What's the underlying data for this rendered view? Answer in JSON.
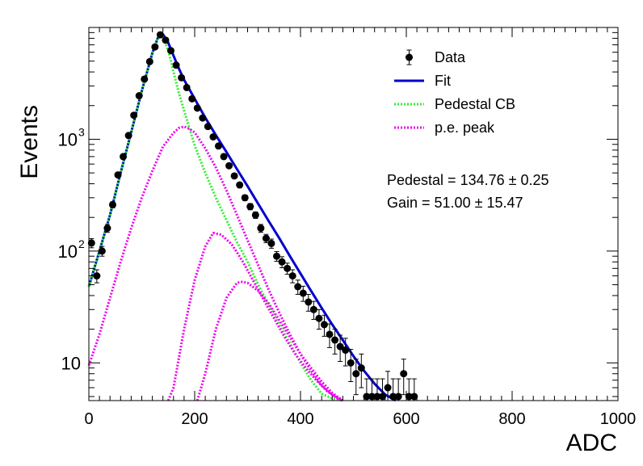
{
  "chart_data": {
    "type": "scatter",
    "xlabel": "ADC",
    "ylabel": "Events",
    "xlim": [
      0,
      1000
    ],
    "ylim": [
      4.6,
      10000
    ],
    "yscale": "log",
    "x_ticks": [
      "0",
      "200",
      "400",
      "600",
      "800",
      "1000"
    ],
    "y_ticks": [
      {
        "value": 10,
        "label": "10",
        "exp": ""
      },
      {
        "value": 100,
        "label": "10",
        "exp": "2"
      },
      {
        "value": 1000,
        "label": "10",
        "exp": "3"
      }
    ],
    "legend": {
      "position": "top-right",
      "items": [
        {
          "label": "Data",
          "kind": "marker",
          "color": "#000000"
        },
        {
          "label": "Fit",
          "kind": "solid",
          "color": "#0000cc"
        },
        {
          "label": "Pedestal CB",
          "kind": "dotted",
          "color": "#33ee33"
        },
        {
          "label": "p.e. peak",
          "kind": "dotted",
          "color": "#ee00ee"
        }
      ]
    },
    "annotations": [
      {
        "text": "Pedestal = 134.76 ± 0.25"
      },
      {
        "text": "Gain = 51.00 ± 15.47"
      }
    ],
    "series": [
      {
        "name": "Data",
        "kind": "points",
        "color": "#000000",
        "x": [
          5,
          15,
          25,
          35,
          45,
          55,
          65,
          75,
          85,
          95,
          105,
          115,
          125,
          135,
          145,
          155,
          165,
          175,
          185,
          195,
          205,
          215,
          225,
          235,
          245,
          255,
          265,
          275,
          285,
          295,
          305,
          315,
          325,
          335,
          345,
          355,
          365,
          375,
          385,
          395,
          405,
          415,
          425,
          435,
          445,
          455,
          465,
          475,
          485,
          495,
          505,
          515,
          525,
          535,
          545,
          555,
          565,
          575,
          585,
          595,
          605,
          615
        ],
        "y": [
          118,
          60,
          100,
          160,
          260,
          480,
          700,
          1080,
          1640,
          2450,
          3450,
          4950,
          6700,
          8600,
          7700,
          6200,
          4600,
          3550,
          2900,
          2300,
          1900,
          1550,
          1300,
          1050,
          870,
          700,
          580,
          470,
          390,
          300,
          250,
          210,
          160,
          130,
          117,
          90,
          80,
          70,
          60,
          48,
          42,
          35,
          30,
          25,
          22,
          18,
          16,
          14,
          13,
          10,
          8,
          9,
          5,
          5,
          5,
          5,
          6,
          5,
          5,
          8,
          5,
          5
        ],
        "yerr": [
          11,
          8,
          10,
          13,
          16,
          22,
          26,
          33,
          40,
          50,
          59,
          70,
          82,
          93,
          88,
          79,
          68,
          60,
          54,
          48,
          44,
          39,
          36,
          32,
          29,
          26,
          24,
          22,
          20,
          17,
          16,
          14,
          13,
          11,
          11,
          9,
          9,
          8,
          8,
          7,
          6.5,
          6,
          5.5,
          5,
          4.7,
          4.3,
          4,
          3.7,
          3.6,
          3.2,
          2.8,
          3,
          2.2,
          2.2,
          2.2,
          2.2,
          2.4,
          2.2,
          2.2,
          2.8,
          2.2,
          2.2
        ]
      },
      {
        "name": "Fit",
        "kind": "solid",
        "color": "#0000cc",
        "x": [
          0,
          20,
          40,
          60,
          80,
          100,
          120,
          130,
          140,
          150,
          160,
          170,
          180,
          190,
          200,
          220,
          240,
          260,
          280,
          300,
          320,
          340,
          360,
          380,
          400,
          420,
          440,
          460,
          480,
          500,
          520,
          540,
          560,
          580
        ],
        "y": [
          48,
          100,
          210,
          500,
          1150,
          2700,
          5900,
          8000,
          8700,
          7300,
          5600,
          4300,
          3400,
          2800,
          2300,
          1560,
          1090,
          770,
          540,
          380,
          265,
          185,
          130,
          90,
          63,
          44,
          31,
          22,
          16,
          11.5,
          8.5,
          6.5,
          5.2,
          4.6
        ]
      },
      {
        "name": "Pedestal CB",
        "kind": "dotted",
        "color": "#33ee33",
        "x": [
          0,
          20,
          40,
          60,
          80,
          100,
          120,
          130,
          140,
          150,
          160,
          170,
          180,
          200,
          220,
          240,
          260,
          280,
          300,
          320,
          340,
          360,
          380,
          400,
          420,
          440,
          460,
          480
        ],
        "y": [
          48,
          100,
          210,
          500,
          1150,
          2700,
          5900,
          8000,
          8200,
          6200,
          4000,
          2600,
          1800,
          880,
          500,
          300,
          190,
          120,
          80,
          50,
          33,
          22,
          15,
          10,
          7,
          5.3,
          4.8,
          4.6
        ]
      },
      {
        "name": "p.e. peak",
        "kind": "dotted",
        "color": "#ee00ee",
        "x": [
          0,
          20,
          40,
          60,
          80,
          100,
          120,
          140,
          160,
          170,
          180,
          190,
          200,
          220,
          240,
          260,
          280,
          300,
          320,
          340,
          360,
          380,
          400,
          420,
          440,
          460,
          480
        ],
        "y": [
          9.5,
          18,
          38,
          80,
          160,
          300,
          520,
          860,
          1140,
          1260,
          1300,
          1240,
          1150,
          830,
          560,
          350,
          210,
          125,
          75,
          45,
          28,
          18,
          12,
          8.5,
          6.3,
          5.2,
          4.6
        ]
      },
      {
        "name": "p.e. peak",
        "kind": "dotted",
        "color": "#ee00ee",
        "x": [
          150,
          160,
          180,
          200,
          220,
          235,
          250,
          270,
          290,
          310,
          330,
          350,
          370,
          390,
          410,
          430,
          450,
          470,
          480
        ],
        "y": [
          4.6,
          6,
          20,
          55,
          110,
          145,
          140,
          115,
          82,
          55,
          37,
          25,
          17,
          12,
          9,
          7,
          5.6,
          4.8,
          4.6
        ]
      },
      {
        "name": "p.e. peak",
        "kind": "dotted",
        "color": "#ee00ee",
        "x": [
          205,
          220,
          240,
          260,
          280,
          290,
          300,
          320,
          340,
          360,
          380,
          400,
          420,
          440,
          460,
          480
        ],
        "y": [
          4.6,
          8,
          20,
          38,
          52,
          53,
          52,
          44,
          34,
          24,
          17,
          12,
          9,
          6.8,
          5.4,
          4.6
        ]
      }
    ]
  }
}
